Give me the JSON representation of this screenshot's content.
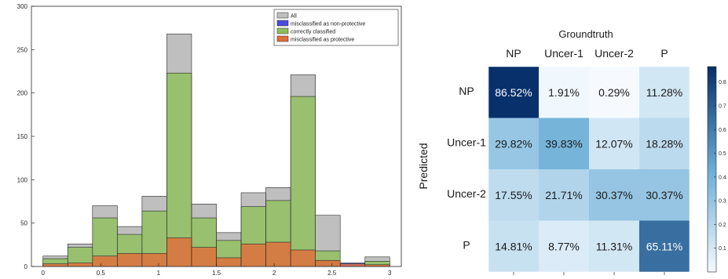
{
  "chart_data": [
    {
      "type": "bar",
      "subtype": "overlaid-histogram",
      "x_bin_edges": [
        0,
        0.2143,
        0.4286,
        0.6429,
        0.8571,
        1.0714,
        1.2857,
        1.5,
        1.7143,
        1.9286,
        2.1429,
        2.3571,
        2.5714,
        2.7857,
        3
      ],
      "xlim": [
        -0.1,
        3.1
      ],
      "ylim": [
        0,
        300
      ],
      "x_ticks": [
        "0",
        "0.5",
        "1",
        "1.5",
        "2",
        "2.5",
        "3"
      ],
      "y_ticks": [
        "0",
        "50",
        "100",
        "150",
        "200",
        "250",
        "300"
      ],
      "x_tick_values": [
        0,
        0.5,
        1,
        1.5,
        2,
        2.5,
        3
      ],
      "y_tick_values": [
        0,
        50,
        100,
        150,
        200,
        250,
        300
      ],
      "legend_position": "top-right",
      "series": [
        {
          "name": "All",
          "color": "#bfbfbf",
          "values": [
            12,
            26,
            70,
            46,
            81,
            268,
            72,
            39,
            85,
            91,
            221,
            59,
            0,
            11
          ]
        },
        {
          "name": "misclassified as non-protective",
          "color": "#4a4ae0",
          "values": [
            0,
            0,
            0,
            0,
            0,
            0,
            0,
            0,
            0,
            0,
            0,
            7,
            4,
            0
          ]
        },
        {
          "name": "correctly classified",
          "color": "#8fbf5c",
          "values": [
            9,
            22,
            56,
            37,
            64,
            223,
            56,
            30,
            69,
            76,
            196,
            18,
            0,
            6
          ]
        },
        {
          "name": "misclassified as protective",
          "color": "#e06e3a",
          "values": [
            3,
            4,
            12,
            15,
            15,
            33,
            22,
            10,
            26,
            28,
            19,
            7,
            3,
            2
          ]
        }
      ]
    },
    {
      "type": "heatmap",
      "title": "Groundtruth",
      "ylabel": "Predicted",
      "columns": [
        "NP",
        "Uncer-1",
        "Uncer-2",
        "P"
      ],
      "rows": [
        "NP",
        "Uncer-1",
        "Uncer-2",
        "P"
      ],
      "values": [
        [
          0.8652,
          0.0191,
          0.0029,
          0.1128
        ],
        [
          0.2982,
          0.3983,
          0.1207,
          0.1828
        ],
        [
          0.1755,
          0.2171,
          0.3037,
          0.3037
        ],
        [
          0.1481,
          0.0877,
          0.1131,
          0.6511
        ]
      ],
      "labels": [
        [
          "86.52%",
          "1.91%",
          "0.29%",
          "11.28%"
        ],
        [
          "29.82%",
          "39.83%",
          "12.07%",
          "18.28%"
        ],
        [
          "17.55%",
          "21.71%",
          "30.37%",
          "30.37%"
        ],
        [
          "14.81%",
          "8.77%",
          "11.31%",
          "65.11%"
        ]
      ],
      "colorbar_range": [
        0,
        0.8652
      ],
      "colorbar_ticks": [
        "0.1",
        "0.2",
        "0.3",
        "0.4",
        "0.5",
        "0.6",
        "0.7",
        "0.8"
      ],
      "colorbar_tick_values": [
        0.1,
        0.2,
        0.3,
        0.4,
        0.5,
        0.6,
        0.7,
        0.8
      ]
    }
  ]
}
